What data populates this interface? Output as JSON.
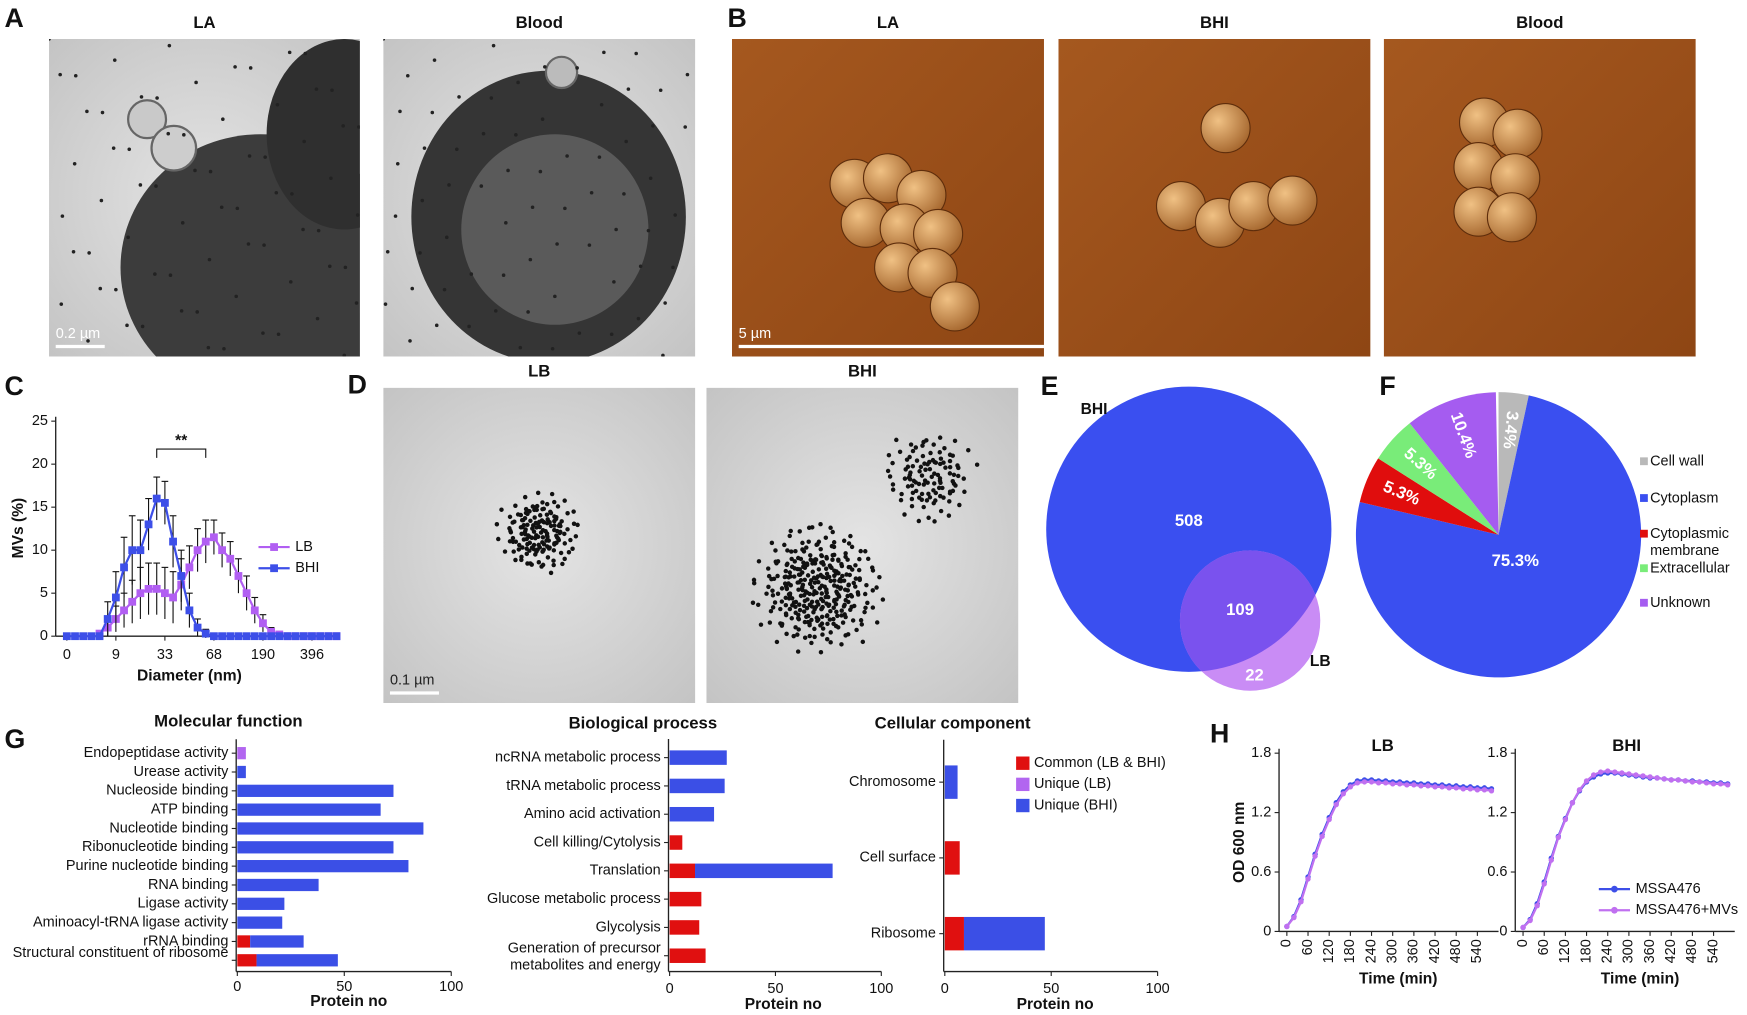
{
  "micrographs": {
    "A": {
      "panel": "A",
      "images": [
        "LA",
        "Blood"
      ],
      "scale_bar": "0.2 µm"
    },
    "B": {
      "panel": "B",
      "images": [
        "LA",
        "BHI",
        "Blood"
      ],
      "scale_bar": "5 µm"
    },
    "D": {
      "panel": "D",
      "images": [
        "LB",
        "BHI"
      ],
      "scale_bar": "0.1 µm"
    }
  },
  "chart_data": [
    {
      "panel": "C",
      "type": "line",
      "categories": [
        "0",
        null,
        null,
        null,
        null,
        null,
        "9",
        null,
        null,
        null,
        null,
        null,
        "33",
        null,
        null,
        null,
        null,
        null,
        "68",
        null,
        null,
        null,
        null,
        null,
        "190",
        null,
        null,
        null,
        null,
        null,
        "396",
        null,
        null,
        null
      ],
      "series": [
        {
          "name": "LB",
          "color": "#b15ef2",
          "values": [
            null,
            null,
            null,
            null,
            0.3,
            1,
            2,
            3,
            4,
            5,
            5.5,
            5.5,
            5,
            4.5,
            6,
            8,
            10,
            11,
            11.5,
            10,
            9,
            7,
            5,
            3,
            1.5,
            0.5,
            0.2,
            0,
            0,
            0,
            0,
            0,
            0,
            0
          ],
          "errors": [
            null,
            null,
            null,
            null,
            0.3,
            1,
            1.5,
            2,
            2.5,
            3,
            3,
            3,
            3,
            3,
            3,
            2.5,
            2.5,
            2.5,
            2,
            2,
            2,
            2,
            2,
            1.5,
            1,
            0.5,
            0.2,
            0,
            0,
            0,
            0,
            0,
            0,
            0
          ]
        },
        {
          "name": "BHI",
          "color": "#3d4fe8",
          "values": [
            0,
            0,
            0,
            0,
            0,
            2,
            4.5,
            8,
            10,
            10,
            13,
            16,
            15.5,
            11,
            7,
            3,
            1,
            0.3,
            0,
            0,
            0,
            0,
            0,
            0,
            0,
            0,
            0,
            0,
            0,
            0,
            0,
            0,
            0,
            0
          ],
          "errors": [
            0,
            0,
            0,
            0,
            0,
            2,
            3,
            3.5,
            4,
            3.5,
            3,
            2.5,
            2.5,
            3,
            3,
            2,
            1,
            0.5,
            0,
            0,
            0,
            0,
            0,
            0,
            0,
            0,
            0,
            0,
            0,
            0,
            0,
            0,
            0,
            0
          ]
        }
      ],
      "ylim": [
        0,
        25
      ],
      "yticks": [
        0,
        5,
        10,
        15,
        20,
        25
      ],
      "ylabel": "MVs (%)",
      "xlabel": "Diameter (nm)",
      "annotation": "**"
    },
    {
      "panel": "E",
      "type": "venn",
      "sets": [
        {
          "name": "BHI",
          "color": "#3a4ff0",
          "only": 508
        },
        {
          "name": "LB",
          "color": "#c98cf5",
          "only": 22
        }
      ],
      "overlap": 109,
      "overlap_color": "#7a52ee"
    },
    {
      "panel": "F",
      "type": "pie",
      "categories": [
        "Cell wall",
        "Cytoplasm",
        "Cytoplasmic membrane",
        "Extracellular",
        "Unknown"
      ],
      "values": [
        3.4,
        75.3,
        5.3,
        5.3,
        10.4
      ],
      "value_labels": [
        "3.4%",
        "75.3%",
        "5.3%",
        "5.3%",
        "10.4%"
      ],
      "colors": [
        "#b9b9b9",
        "#3a4ff0",
        "#e00d0d",
        "#79ec79",
        "#a55cf0"
      ]
    },
    {
      "panel": "G",
      "type": "stacked-hbar",
      "series": [
        {
          "name": "Common (LB & BHI)",
          "color": "#e01010"
        },
        {
          "name": "Unique (LB)",
          "color": "#b266f0"
        },
        {
          "name": "Unique (BHI)",
          "color": "#3b4fe6"
        }
      ],
      "xlim": [
        0,
        100
      ],
      "xticks": [
        0,
        50,
        100
      ],
      "xlabel": "Protein no",
      "subplots": [
        {
          "title": "Molecular function",
          "categories": [
            "Endopeptidase activity",
            "Urease activity",
            "Nucleoside binding",
            "ATP binding",
            "Nucleotide binding",
            "Ribonucleotide binding",
            "Purine nucleotide binding",
            "RNA binding",
            "Ligase activity",
            "Aminoacyl-tRNA ligase activity",
            "rRNA binding",
            "Structural constituent of ribosome"
          ],
          "values": [
            [
              0,
              0,
              0,
              0,
              0,
              0,
              0,
              0,
              0,
              0,
              6,
              9
            ],
            [
              4,
              0,
              0,
              0,
              0,
              0,
              0,
              0,
              0,
              0,
              0,
              0
            ],
            [
              0,
              4,
              73,
              67,
              87,
              73,
              80,
              38,
              22,
              21,
              25,
              38
            ]
          ]
        },
        {
          "title": "Biological process",
          "categories": [
            "ncRNA metabolic process",
            "tRNA metabolic process",
            "Amino acid activation",
            "Cell killing/Cytolysis",
            "Translation",
            "Glucose metabolic process",
            "Glycolysis",
            "Generation of precursor metabolites and energy"
          ],
          "values": [
            [
              0,
              0,
              0,
              6,
              12,
              15,
              14,
              17
            ],
            [
              0,
              0,
              0,
              0,
              0,
              0,
              0,
              0
            ],
            [
              27,
              26,
              21,
              0,
              65,
              0,
              0,
              0
            ]
          ]
        },
        {
          "title": "Cellular component",
          "categories": [
            "Chromosome",
            "Cell surface",
            "Ribosome"
          ],
          "values": [
            [
              0,
              7,
              9
            ],
            [
              0,
              0,
              0
            ],
            [
              6,
              0,
              38
            ]
          ]
        }
      ]
    },
    {
      "panel": "H",
      "type": "line",
      "title": "LB",
      "x": [
        0,
        20,
        40,
        60,
        80,
        100,
        120,
        140,
        160,
        180,
        200,
        220,
        240,
        260,
        280,
        300,
        320,
        340,
        360,
        380,
        400,
        420,
        440,
        460,
        480,
        500,
        520,
        540,
        560,
        580
      ],
      "series": [
        {
          "color": "#3d4fe8",
          "values": [
            0.05,
            0.15,
            0.32,
            0.55,
            0.78,
            0.98,
            1.15,
            1.3,
            1.41,
            1.48,
            1.52,
            1.53,
            1.53,
            1.52,
            1.52,
            1.51,
            1.51,
            1.5,
            1.5,
            1.49,
            1.49,
            1.48,
            1.48,
            1.47,
            1.47,
            1.46,
            1.46,
            1.45,
            1.45,
            1.44
          ]
        },
        {
          "color": "#c070f0",
          "values": [
            0.05,
            0.14,
            0.3,
            0.53,
            0.76,
            0.96,
            1.13,
            1.28,
            1.39,
            1.46,
            1.5,
            1.51,
            1.51,
            1.5,
            1.5,
            1.49,
            1.49,
            1.48,
            1.48,
            1.47,
            1.47,
            1.46,
            1.46,
            1.45,
            1.45,
            1.44,
            1.44,
            1.43,
            1.43,
            1.42
          ]
        }
      ],
      "xlim": [
        0,
        600
      ],
      "xticks": [
        0,
        60,
        120,
        180,
        240,
        300,
        360,
        420,
        480,
        540
      ],
      "ylim": [
        0,
        1.8
      ],
      "yticks": [
        0,
        0.6,
        1.2,
        1.8
      ],
      "ylabel": "OD 600 nm",
      "xlabel": "Time (min)"
    },
    {
      "type": "line",
      "title": "BHI",
      "x": [
        0,
        20,
        40,
        60,
        80,
        100,
        120,
        140,
        160,
        180,
        200,
        220,
        240,
        260,
        280,
        300,
        320,
        340,
        360,
        380,
        400,
        420,
        440,
        460,
        480,
        500,
        520,
        540,
        560,
        580
      ],
      "series": [
        {
          "name": "MSSA476",
          "color": "#3d4fe8",
          "values": [
            0.04,
            0.12,
            0.28,
            0.5,
            0.74,
            0.96,
            1.14,
            1.3,
            1.42,
            1.51,
            1.56,
            1.59,
            1.6,
            1.6,
            1.59,
            1.58,
            1.57,
            1.56,
            1.55,
            1.55,
            1.54,
            1.53,
            1.53,
            1.52,
            1.52,
            1.51,
            1.51,
            1.5,
            1.5,
            1.49
          ]
        },
        {
          "name": "MSSA476+MVs",
          "color": "#c070f0",
          "values": [
            0.04,
            0.11,
            0.26,
            0.48,
            0.72,
            0.95,
            1.13,
            1.3,
            1.43,
            1.52,
            1.58,
            1.61,
            1.62,
            1.61,
            1.6,
            1.59,
            1.58,
            1.57,
            1.56,
            1.55,
            1.54,
            1.53,
            1.53,
            1.52,
            1.51,
            1.51,
            1.5,
            1.49,
            1.49,
            1.48
          ]
        }
      ],
      "xlim": [
        0,
        600
      ],
      "xticks": [
        0,
        60,
        120,
        180,
        240,
        300,
        360,
        420,
        480,
        540
      ],
      "ylim": [
        0,
        1.8
      ],
      "yticks": [
        0,
        0.6,
        1.2,
        1.8
      ],
      "xlabel": "Time (min)"
    }
  ]
}
